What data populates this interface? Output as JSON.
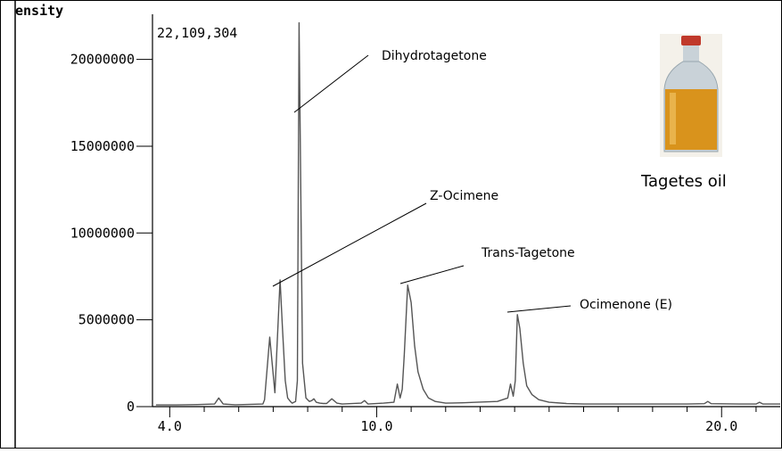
{
  "chart_data": {
    "type": "line",
    "ylabel": "ensity",
    "max_intensity_label": "22,109,304",
    "x_ticks": [
      "4.0",
      "10.0",
      "20.0"
    ],
    "x_tick_values": [
      4.0,
      10.0,
      20.0
    ],
    "y_ticks": [
      "0",
      "5000000",
      "10000000",
      "15000000",
      "20000000"
    ],
    "y_tick_values": [
      0,
      5000000,
      10000000,
      15000000,
      20000000
    ],
    "xlim": [
      3.5,
      21.7
    ],
    "ylim": [
      0,
      22600000
    ],
    "grid": false,
    "series": [
      {
        "x": [
          3.6,
          4.2,
          4.8,
          5.3,
          5.42,
          5.55,
          5.9,
          6.7,
          6.75,
          6.9,
          7.05,
          7.2,
          7.27,
          7.35,
          7.42,
          7.5,
          7.55,
          7.6,
          7.65,
          7.7,
          7.75,
          7.85,
          7.95,
          8.05,
          8.12,
          8.18,
          8.25,
          8.35,
          8.45,
          8.55,
          8.7,
          8.85,
          9.0,
          9.55,
          9.65,
          9.75,
          10.2,
          10.5,
          10.6,
          10.68,
          10.74,
          10.8,
          10.9,
          11.0,
          11.1,
          11.2,
          11.35,
          11.5,
          11.7,
          12.0,
          12.5,
          12.9,
          13.5,
          13.8,
          13.88,
          13.96,
          14.02,
          14.08,
          14.15,
          14.25,
          14.35,
          14.5,
          14.7,
          15.0,
          15.5,
          16.0,
          17.0,
          18.0,
          19.0,
          19.5,
          19.6,
          19.7,
          20.5,
          21.0,
          21.1,
          21.2,
          21.7
        ],
        "y": [
          100000,
          100000,
          120000,
          150000,
          500000,
          150000,
          110000,
          150000,
          400000,
          4000000,
          800000,
          7300000,
          4500000,
          1500000,
          500000,
          300000,
          200000,
          250000,
          300000,
          1500000,
          22109304,
          2500000,
          500000,
          300000,
          350000,
          450000,
          250000,
          200000,
          180000,
          180000,
          450000,
          200000,
          150000,
          200000,
          350000,
          150000,
          200000,
          250000,
          1300000,
          500000,
          1000000,
          3000000,
          7000000,
          6000000,
          3500000,
          2000000,
          1000000,
          500000,
          300000,
          200000,
          220000,
          250000,
          300000,
          500000,
          1300000,
          600000,
          1500000,
          5300000,
          4500000,
          2500000,
          1200000,
          700000,
          400000,
          250000,
          180000,
          150000,
          150000,
          150000,
          150000,
          170000,
          300000,
          170000,
          150000,
          150000,
          250000,
          150000,
          150000
        ]
      }
    ],
    "annotations": [
      {
        "text": "Dihydrotagetone",
        "x": 7.75
      },
      {
        "text": "Z-Ocimene",
        "x": 7.2
      },
      {
        "text": "Trans-Tagetone",
        "x": 10.9
      },
      {
        "text": "Ocimenone (E)",
        "x": 14.08
      }
    ]
  },
  "inset": {
    "caption": "Tagetes oil",
    "image": "tagetes-oil-bottle"
  },
  "colors": {
    "trace": "#555555",
    "oil": "#d9931c",
    "bottle": "#c9d2d8",
    "cap": "#c0392b"
  }
}
